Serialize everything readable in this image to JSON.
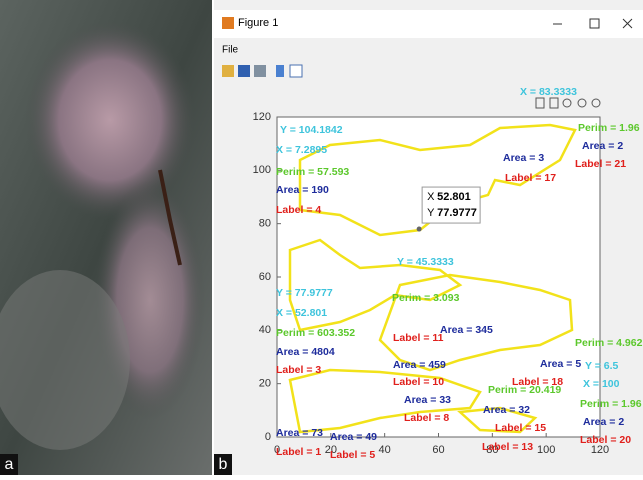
{
  "panel_labels": [
    "a",
    "b"
  ],
  "window": {
    "title": "Figure 1",
    "menu": [
      "File"
    ]
  },
  "chart_data": {
    "type": "scatter",
    "xlim": [
      0,
      120
    ],
    "ylim": [
      0,
      120
    ],
    "xticks": [
      0,
      20,
      40,
      60,
      80,
      100,
      120
    ],
    "yticks": [
      0,
      20,
      40,
      60,
      80,
      100,
      120
    ],
    "datatip": {
      "x_label": "X",
      "x": 52.801,
      "y_label": "Y",
      "y": 77.9777
    },
    "annotations": [
      {
        "text": "Y = 104.1842",
        "color": "#3ec4dc"
      },
      {
        "text": "X = 7.2895",
        "color": "#3ec4dc"
      },
      {
        "text": "Perim = 57.593",
        "color": "#5cc82c"
      },
      {
        "text": "Area = 190",
        "color": "#1e2c9c"
      },
      {
        "text": "Label = 4",
        "color": "#e0201c"
      },
      {
        "text": "Y = 77.9777",
        "color": "#3ec4dc"
      },
      {
        "text": "X = 52.801",
        "color": "#3ec4dc"
      },
      {
        "text": "Perim = 603.352",
        "color": "#5cc82c"
      },
      {
        "text": "Area = 4804",
        "color": "#1e2c9c"
      },
      {
        "text": "Label = 3",
        "color": "#e0201c"
      },
      {
        "text": "X = 83.3333",
        "color": "#3ec4dc"
      },
      {
        "text": "Perim = 1.96",
        "color": "#5cc82c"
      },
      {
        "text": "Area = 2",
        "color": "#1e2c9c"
      },
      {
        "text": "Label = 21",
        "color": "#e0201c"
      },
      {
        "text": "Area = 3",
        "color": "#1e2c9c"
      },
      {
        "text": "Label = 17",
        "color": "#e0201c"
      },
      {
        "text": "Y = 45.3333",
        "color": "#3ec4dc"
      },
      {
        "text": "Perim = 3.093",
        "color": "#5cc82c"
      },
      {
        "text": "Label = 11",
        "color": "#e0201c"
      },
      {
        "text": "Area = 459",
        "color": "#1e2c9c"
      },
      {
        "text": "Label = 10",
        "color": "#e0201c"
      },
      {
        "text": "Area = 33",
        "color": "#1e2c9c"
      },
      {
        "text": "Label = 8",
        "color": "#e0201c"
      },
      {
        "text": "Area = 73",
        "color": "#1e2c9c"
      },
      {
        "text": "Area = 49",
        "color": "#1e2c9c"
      },
      {
        "text": "Label = 1",
        "color": "#e0201c"
      },
      {
        "text": "Label = 5",
        "color": "#e0201c"
      },
      {
        "text": "Perim = 1.96",
        "color": "#5cc82c"
      },
      {
        "text": "Area = 2",
        "color": "#1e2c9c"
      },
      {
        "text": "Label = 20",
        "color": "#e0201c"
      },
      {
        "text": "Label = 15",
        "color": "#e0201c"
      },
      {
        "text": "Label = 13",
        "color": "#e0201c"
      },
      {
        "text": "Area = 32",
        "color": "#1e2c9c"
      },
      {
        "text": "Y = 6.5",
        "color": "#3ec4dc"
      },
      {
        "text": "X = 100",
        "color": "#3ec4dc"
      },
      {
        "text": "Perim = 4.962",
        "color": "#5cc82c"
      },
      {
        "text": "Label = 18",
        "color": "#e0201c"
      },
      {
        "text": "Area = 5",
        "color": "#1e2c9c"
      },
      {
        "text": "Area = 345",
        "color": "#1e2c9c"
      },
      {
        "text": "Perim = 20.419",
        "color": "#5cc82c"
      }
    ]
  }
}
